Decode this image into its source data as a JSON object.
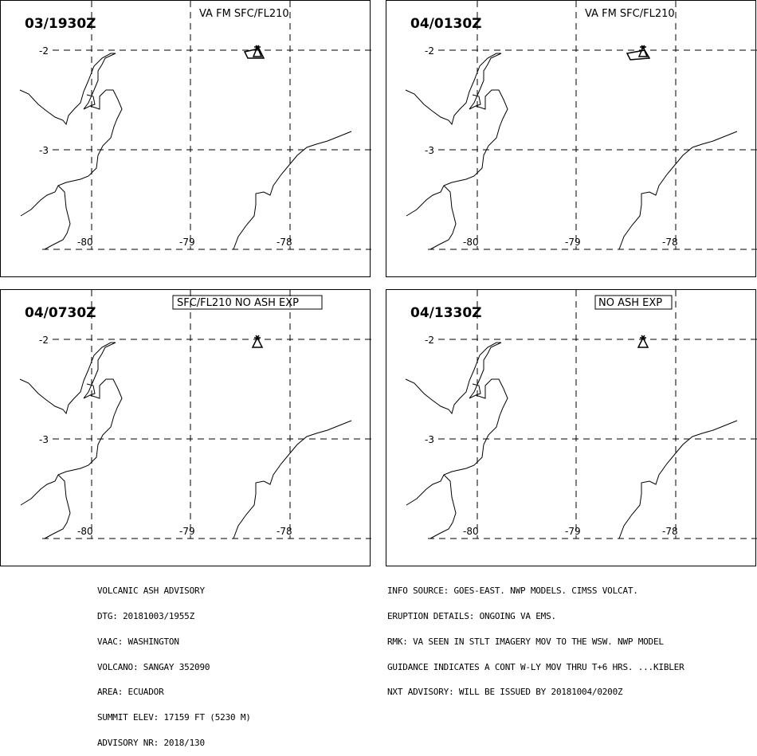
{
  "panels": [
    {
      "time": "03/1930Z",
      "header": "VA FM SFC/FL210",
      "header_boxed": false,
      "ash": true
    },
    {
      "time": "04/0130Z",
      "header": "VA FM SFC/FL210",
      "header_boxed": false,
      "ash": true
    },
    {
      "time": "04/0730Z",
      "header": "SFC/FL210 NO ASH EXP",
      "header_boxed": true,
      "ash": false
    },
    {
      "time": "04/1330Z",
      "header": "NO ASH EXP",
      "header_boxed": true,
      "ash": false
    }
  ],
  "grid_labels": {
    "lat": [
      "-2",
      "-3"
    ],
    "lon": [
      "-80",
      "-79",
      "-78"
    ]
  },
  "advisory_left": [
    "VOLCANIC ASH ADVISORY",
    "DTG: 20181003/1955Z",
    "VAAC: WASHINGTON",
    "VOLCANO: SANGAY 352090",
    "AREA: ECUADOR",
    "SUMMIT ELEV: 17159 FT (5230 M)",
    "ADVISORY NR: 2018/130"
  ],
  "advisory_right": [
    "INFO SOURCE: GOES-EAST. NWP MODELS. CIMSS VOLCAT.",
    "ERUPTION DETAILS: ONGOING VA EMS.",
    "RMK: VA SEEN IN STLT IMAGERY MOV TO THE WSW. NWP MODEL",
    "GUIDANCE INDICATES A CONT W-LY MOV THRU T+6 HRS. ...KIBLER",
    "NXT ADVISORY: WILL BE ISSUED BY 20181004/0200Z"
  ],
  "colors": {
    "line": "#000000",
    "background": "#ffffff"
  }
}
